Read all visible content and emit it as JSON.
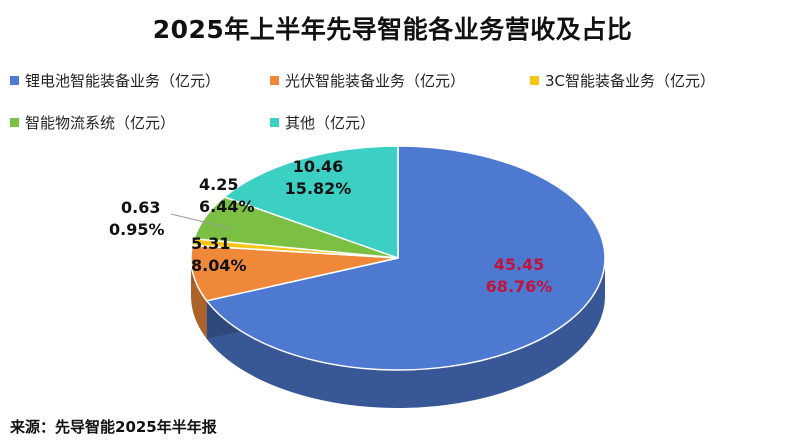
{
  "title": "2025年上半年先导智能各业务营收及占比",
  "source": "来源：先导智能2025年半年报",
  "chart_data": {
    "type": "pie",
    "title": "2025年上半年先导智能各业务营收及占比",
    "unit": "亿元",
    "legend_position": "top",
    "slices": [
      {
        "name": "锂电池智能装备业务（亿元）",
        "value": 45.45,
        "percent": "68.76%",
        "color": "#4E79D0"
      },
      {
        "name": "光伏智能装备业务（亿元）",
        "value": 5.31,
        "percent": "8.04%",
        "color": "#F0883A"
      },
      {
        "name": "3C智能装备业务（亿元）",
        "value": 0.63,
        "percent": "0.95%",
        "color": "#F5C518"
      },
      {
        "name": "智能物流系统（亿元）",
        "value": 4.25,
        "percent": "6.44%",
        "color": "#7BC043"
      },
      {
        "name": "其他（亿元）",
        "value": 10.46,
        "percent": "15.82%",
        "color": "#3CCFC4"
      }
    ],
    "label_colors": {
      "default": "#111111",
      "largest": "#C0143C"
    }
  }
}
